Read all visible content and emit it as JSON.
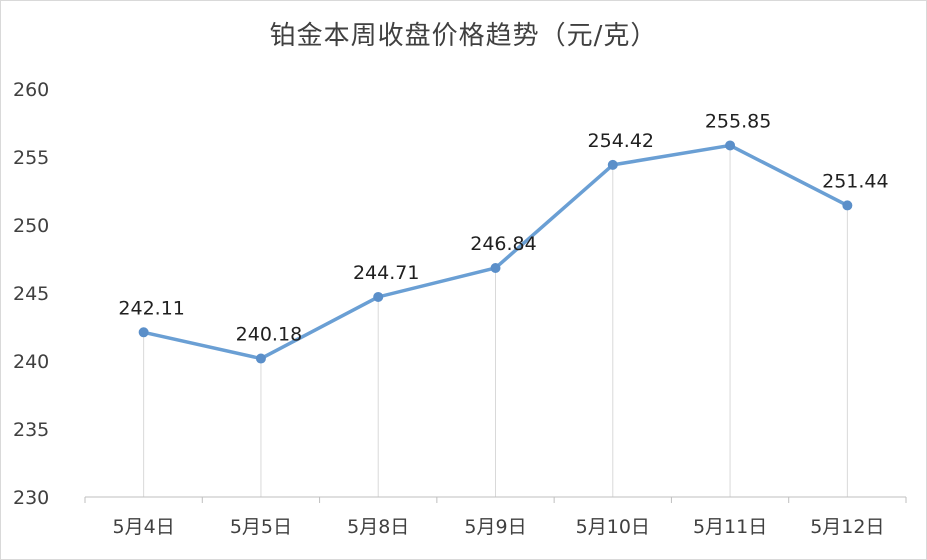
{
  "chart_data": {
    "type": "line",
    "title": "铂金本周收盘价格趋势（元/克）",
    "categories": [
      "5月4日",
      "5月5日",
      "5月8日",
      "5月9日",
      "5月10日",
      "5月11日",
      "5月12日"
    ],
    "series": [
      {
        "values": [
          242.11,
          240.18,
          244.71,
          246.84,
          254.42,
          255.85,
          251.44
        ],
        "labels": [
          "242.11",
          "240.18",
          "244.71",
          "246.84",
          "254.42",
          "255.85",
          "251.44"
        ]
      }
    ],
    "yticks": [
      "230",
      "235",
      "240",
      "245",
      "250",
      "255",
      "260"
    ],
    "ylim": [
      230,
      260
    ],
    "xlabel": "",
    "ylabel": "",
    "grid": "vertical drop lines",
    "legend": "none",
    "colors": {
      "line": "#6a9fd4",
      "marker": "#5b8fc9",
      "dropline": "#d9d9d9",
      "axis": "#bfbfbf"
    }
  }
}
